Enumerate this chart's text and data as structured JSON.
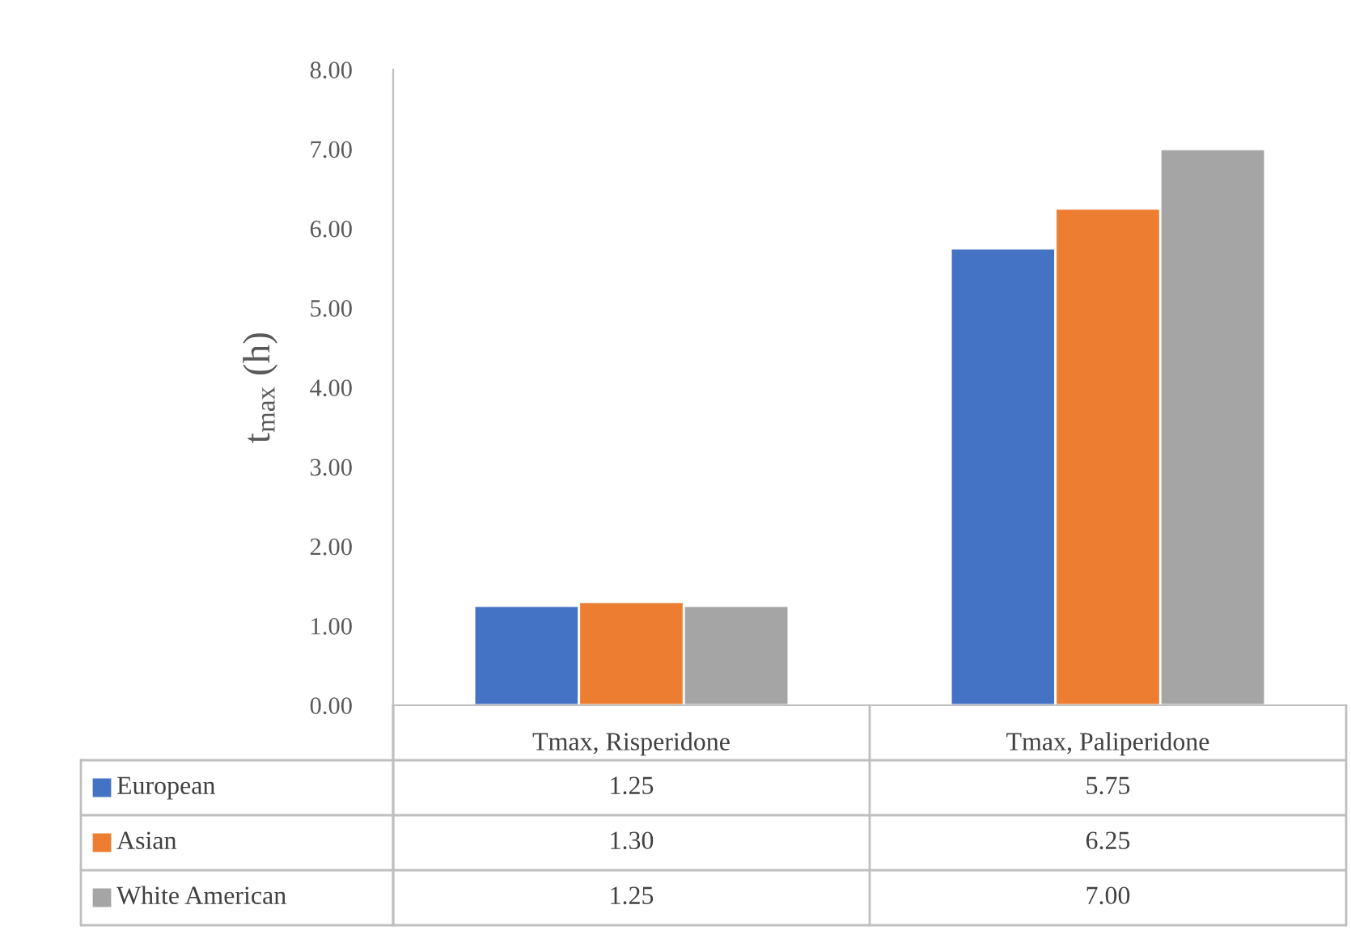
{
  "chart_data": {
    "type": "bar",
    "ylabel": "t$_{max}$ (h)",
    "categories": [
      "Tmax, Risperidone",
      "Tmax, Paliperidone"
    ],
    "series": [
      {
        "name": "European",
        "color": "#4472c4",
        "values": [
          1.25,
          5.75
        ]
      },
      {
        "name": "Asian",
        "color": "#ed7d31",
        "values": [
          1.3,
          6.25
        ]
      },
      {
        "name": "White American",
        "color": "#a5a5a5",
        "values": [
          1.25,
          7.0
        ]
      }
    ],
    "value_labels": [
      [
        "1.25",
        "5.75"
      ],
      [
        "1.30",
        "6.25"
      ],
      [
        "1.25",
        "7.00"
      ]
    ],
    "ylim": [
      0,
      8
    ],
    "yticks": [
      {
        "value": 0,
        "label": "0.00"
      },
      {
        "value": 1,
        "label": "1.00"
      },
      {
        "value": 2,
        "label": "2.00"
      },
      {
        "value": 3,
        "label": "3.00"
      },
      {
        "value": 4,
        "label": "4.00"
      },
      {
        "value": 5,
        "label": "5.00"
      },
      {
        "value": 6,
        "label": "6.00"
      },
      {
        "value": 7,
        "label": "7.00"
      },
      {
        "value": 8,
        "label": "8.00"
      }
    ],
    "grid": false,
    "legend": "bottom"
  }
}
